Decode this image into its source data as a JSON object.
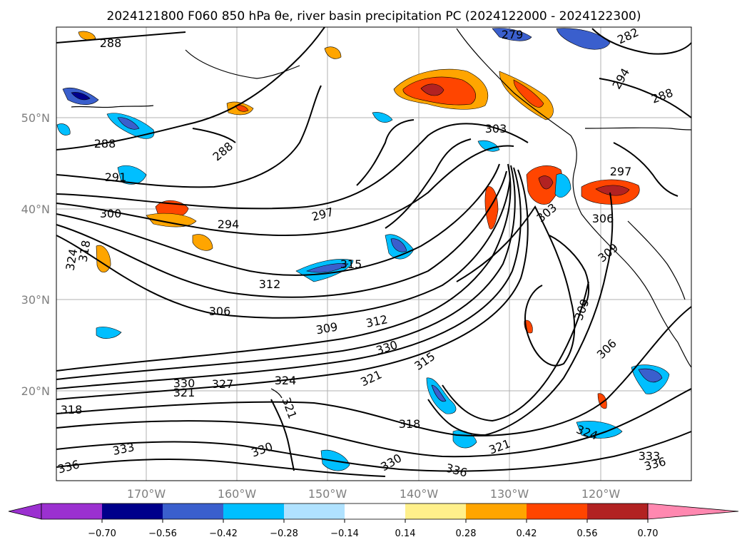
{
  "title": "2024121800 F060 850 hPa θe, river basin precipitation PC (2024122000 - 2024122300)",
  "map": {
    "lat_labels": [
      "50°N",
      "40°N",
      "30°N",
      "20°N"
    ],
    "lon_labels": [
      "170°W",
      "160°W",
      "150°W",
      "140°W",
      "130°W",
      "120°W"
    ],
    "gridlines": true,
    "contour_variable": "850 hPa θe",
    "contour_labels": [
      "288",
      "288",
      "288",
      "291",
      "294",
      "297",
      "300",
      "303",
      "303",
      "306",
      "306",
      "306",
      "309",
      "309",
      "309",
      "312",
      "312",
      "315",
      "315",
      "318",
      "318",
      "318",
      "321",
      "321",
      "321",
      "321",
      "324",
      "324",
      "324",
      "327",
      "330",
      "330",
      "330",
      "330",
      "333",
      "333",
      "336",
      "336",
      "336",
      "282",
      "294",
      "288",
      "297",
      "279"
    ]
  },
  "colorbar": {
    "extend": "both",
    "ticks": [
      "−0.70",
      "−0.56",
      "−0.42",
      "−0.28",
      "−0.14",
      "0.14",
      "0.28",
      "0.42",
      "0.56",
      "0.70"
    ],
    "colors": {
      "under": "#9b30d0",
      "b1": "#00008b",
      "b2": "#3a5fcd",
      "b3": "#00bfff",
      "b4": "#b0e2ff",
      "b5": "#ffffff",
      "b6": "#fff08b",
      "b7": "#ffa500",
      "b8": "#ff4500",
      "b9": "#b22222",
      "over": "#ff88b0"
    }
  }
}
